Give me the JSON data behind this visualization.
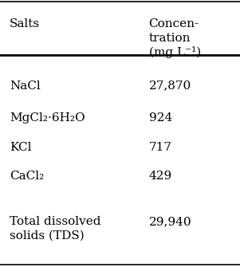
{
  "col1_header": "Salts",
  "col2_header": "Concen-\ntration\n(mg L⁻¹)",
  "rows": [
    {
      "salt": "NaCl",
      "conc": "27,870"
    },
    {
      "salt": "MgCl₂·6H₂O",
      "conc": "924"
    },
    {
      "salt": "KCl",
      "conc": "717"
    },
    {
      "salt": "CaCl₂",
      "conc": "429"
    },
    {
      "salt": "Total dissolved\nsolids (TDS)",
      "conc": "29,940"
    }
  ],
  "bg_color": "#ffffff",
  "text_color": "#000000",
  "font_size": 11,
  "header_font_size": 11
}
